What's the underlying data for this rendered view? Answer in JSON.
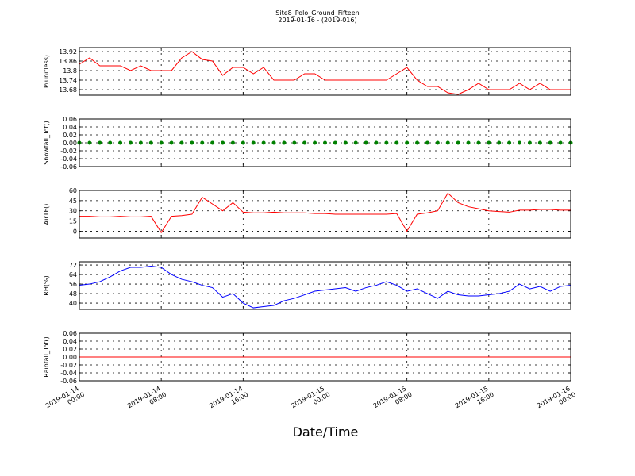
{
  "chart_data": {
    "title": "Site8_Polo_Ground_Fifteen",
    "subtitle": "2019-01-16 - (2019-016)",
    "xlabel": "Date/Time",
    "x": [
      "2019-01-14 00:00",
      "2019-01-14 01:00",
      "2019-01-14 02:00",
      "2019-01-14 03:00",
      "2019-01-14 04:00",
      "2019-01-14 05:00",
      "2019-01-14 06:00",
      "2019-01-14 07:00",
      "2019-01-14 08:00",
      "2019-01-14 09:00",
      "2019-01-14 10:00",
      "2019-01-14 11:00",
      "2019-01-14 12:00",
      "2019-01-14 13:00",
      "2019-01-14 14:00",
      "2019-01-14 15:00",
      "2019-01-14 16:00",
      "2019-01-14 17:00",
      "2019-01-14 18:00",
      "2019-01-14 19:00",
      "2019-01-14 20:00",
      "2019-01-14 21:00",
      "2019-01-14 22:00",
      "2019-01-14 23:00",
      "2019-01-15 00:00",
      "2019-01-15 01:00",
      "2019-01-15 02:00",
      "2019-01-15 03:00",
      "2019-01-15 04:00",
      "2019-01-15 05:00",
      "2019-01-15 06:00",
      "2019-01-15 07:00",
      "2019-01-15 08:00",
      "2019-01-15 09:00",
      "2019-01-15 10:00",
      "2019-01-15 11:00",
      "2019-01-15 12:00",
      "2019-01-15 13:00",
      "2019-01-15 14:00",
      "2019-01-15 15:00",
      "2019-01-15 16:00",
      "2019-01-15 17:00",
      "2019-01-15 18:00",
      "2019-01-15 19:00",
      "2019-01-15 20:00",
      "2019-01-15 21:00",
      "2019-01-15 22:00",
      "2019-01-15 23:00",
      "2019-01-16 00:00"
    ],
    "xlim": [
      "2019-01-14 00:00",
      "2019-01-16 00:00"
    ],
    "xticks": [
      "2019-01-14 00:00",
      "2019-01-14 08:00",
      "2019-01-14 16:00",
      "2019-01-15 00:00",
      "2019-01-15 08:00",
      "2019-01-15 16:00",
      "2019-01-16 00:00"
    ],
    "grid": true,
    "panels": [
      {
        "type": "line",
        "ylabel": "P(unitless)",
        "ylim": [
          13.645,
          13.945
        ],
        "yticks": [
          13.68,
          13.74,
          13.8,
          13.86,
          13.92
        ],
        "series": [
          {
            "color": "#ff0000",
            "values": [
              13.84,
              13.88,
              13.83,
              13.83,
              13.83,
              13.8,
              13.83,
              13.8,
              13.8,
              13.8,
              13.88,
              13.92,
              13.87,
              13.86,
              13.77,
              13.82,
              13.82,
              13.78,
              13.82,
              13.74,
              13.74,
              13.74,
              13.78,
              13.78,
              13.74,
              13.74,
              13.74,
              13.74,
              13.74,
              13.74,
              13.74,
              13.78,
              13.82,
              13.74,
              13.7,
              13.7,
              13.66,
              13.65,
              13.68,
              13.72,
              13.68,
              13.68,
              13.68,
              13.72,
              13.68,
              13.72,
              13.68,
              13.68,
              13.68
            ]
          }
        ]
      },
      {
        "type": "scatter",
        "ylabel": "Snowfall_Tot()",
        "ylim": [
          -0.06,
          0.06
        ],
        "yticks": [
          -0.06,
          -0.04,
          -0.02,
          {
            "value": 0,
            "label": "0.00"
          },
          0.02,
          0.04,
          0.06
        ],
        "series": [
          {
            "color": "#008000",
            "values": [
              0,
              0,
              0,
              0,
              0,
              0,
              0,
              0,
              0,
              0,
              0,
              0,
              0,
              0,
              0,
              0,
              0,
              0,
              0,
              0,
              0,
              0,
              0,
              0,
              0,
              0,
              0,
              0,
              0,
              0,
              0,
              0,
              0,
              0,
              0,
              0,
              0,
              0,
              0,
              0,
              0,
              0,
              0,
              0,
              0,
              0,
              0,
              0,
              0
            ]
          }
        ]
      },
      {
        "type": "line",
        "ylabel": "AirTF()",
        "ylim": [
          -10,
          60
        ],
        "yticks": [
          0,
          15,
          30,
          45,
          60
        ],
        "series": [
          {
            "color": "#ff0000",
            "values": [
              22,
              22,
              21,
              21,
              22,
              21,
              21,
              22,
              -2,
              22,
              23,
              25,
              50,
              40,
              30,
              42,
              28,
              27,
              27,
              28,
              27,
              27,
              27,
              26,
              26,
              25,
              25,
              25,
              25,
              25,
              25,
              26,
              0,
              25,
              27,
              30,
              56,
              42,
              36,
              33,
              30,
              29,
              28,
              31,
              31,
              32,
              32,
              31,
              31
            ]
          }
        ]
      },
      {
        "type": "line",
        "ylabel": "RH(%)",
        "ylim": [
          34.7,
          74.7
        ],
        "yticks": [
          40,
          48,
          56,
          64,
          72
        ],
        "series": [
          {
            "color": "#0000ff",
            "values": [
              55,
              56,
              58,
              62,
              67,
              70,
              70,
              71,
              70,
              64,
              60,
              58,
              55,
              53,
              45,
              48,
              40,
              36,
              37,
              38,
              42,
              44,
              47,
              50,
              51,
              52,
              53,
              50,
              53,
              55,
              58,
              55,
              50,
              52,
              48,
              44,
              50,
              47,
              46,
              46,
              47,
              48,
              50,
              56,
              52,
              54,
              50,
              54,
              55
            ]
          }
        ]
      },
      {
        "type": "line",
        "ylabel": "Rainfall_Tot()",
        "ylim": [
          -0.06,
          0.06
        ],
        "yticks": [
          -0.06,
          -0.04,
          -0.02,
          {
            "value": 0,
            "label": "0.00"
          },
          0.02,
          0.04,
          0.06
        ],
        "series": [
          {
            "color": "#ff0000",
            "values": [
              0,
              0,
              0,
              0,
              0,
              0,
              0,
              0,
              0,
              0,
              0,
              0,
              0,
              0,
              0,
              0,
              0,
              0,
              0,
              0,
              0,
              0,
              0,
              0,
              0,
              0,
              0,
              0,
              0,
              0,
              0,
              0,
              0,
              0,
              0,
              0,
              0,
              0,
              0,
              0,
              0,
              0,
              0,
              0,
              0,
              0,
              0,
              0,
              0
            ]
          }
        ]
      }
    ]
  }
}
